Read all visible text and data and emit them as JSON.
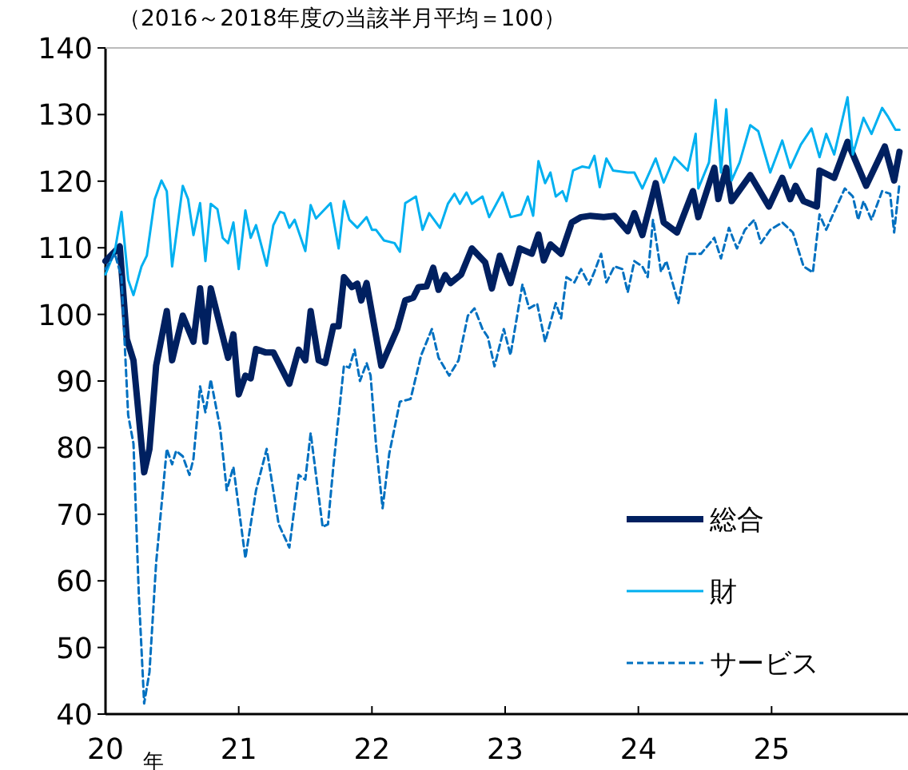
{
  "chart_data": {
    "type": "line",
    "title": "（2016～2018年度の当該半月平均＝100）",
    "xlabel": "年",
    "xlim": [
      2020,
      2026
    ],
    "xticks": [
      {
        "value": 2020,
        "label": "20"
      },
      {
        "value": 2021,
        "label": "21"
      },
      {
        "value": 2022,
        "label": "22"
      },
      {
        "value": 2023,
        "label": "23"
      },
      {
        "value": 2024,
        "label": "24"
      },
      {
        "value": 2025,
        "label": "25"
      }
    ],
    "ylim": [
      40,
      140
    ],
    "yticks": [
      40,
      50,
      60,
      70,
      80,
      90,
      100,
      110,
      120,
      130,
      140
    ],
    "legend": "bottom right",
    "marker": "none",
    "series": [
      {
        "name": "総合",
        "color": "#002060",
        "line_style": "solid",
        "x": [
          2020.0,
          2020.107,
          2020.16,
          2020.21,
          2020.29,
          2020.33,
          2020.38,
          2020.46,
          2020.5,
          2020.58,
          2020.66,
          2020.71,
          2020.75,
          2020.79,
          2020.92,
          2020.96,
          2021.0,
          2021.05,
          2021.09,
          2021.13,
          2021.2,
          2021.26,
          2021.38,
          2021.45,
          2021.5,
          2021.54,
          2021.6,
          2021.65,
          2021.71,
          2021.75,
          2021.79,
          2021.85,
          2021.89,
          2021.92,
          2021.96,
          2022.07,
          2022.19,
          2022.25,
          2022.31,
          2022.35,
          2022.41,
          2022.46,
          2022.5,
          2022.55,
          2022.59,
          2022.67,
          2022.75,
          2022.85,
          2022.9,
          2022.96,
          2023.04,
          2023.11,
          2023.2,
          2023.25,
          2023.29,
          2023.34,
          2023.42,
          2023.5,
          2023.57,
          2023.64,
          2023.74,
          2023.82,
          2023.92,
          2023.97,
          2024.03,
          2024.13,
          2024.19,
          2024.29,
          2024.41,
          2024.45,
          2024.57,
          2024.6,
          2024.66,
          2024.7,
          2024.84,
          2024.98,
          2025.08,
          2025.14,
          2025.18,
          2025.24,
          2025.34,
          2025.36,
          2025.47,
          2025.57,
          2025.71,
          2025.85,
          2025.92,
          2025.96
        ],
        "values": [
          108.0,
          110.2,
          96.3,
          93.1,
          76.3,
          79.8,
          92.3,
          100.5,
          93.1,
          99.8,
          95.9,
          103.9,
          95.9,
          103.9,
          93.5,
          97.0,
          88.0,
          90.8,
          90.4,
          94.8,
          94.3,
          94.3,
          89.6,
          94.7,
          93.1,
          100.5,
          93.1,
          92.7,
          98.2,
          98.2,
          105.6,
          104.1,
          104.6,
          102.1,
          104.7,
          92.3,
          97.8,
          102.1,
          102.5,
          104.1,
          104.2,
          107.0,
          103.7,
          105.9,
          104.7,
          106.0,
          109.9,
          107.8,
          103.9,
          108.8,
          104.7,
          109.9,
          109.1,
          112.0,
          108.1,
          110.5,
          109.1,
          113.8,
          114.6,
          114.8,
          114.6,
          114.8,
          112.5,
          115.2,
          111.9,
          119.7,
          113.8,
          112.3,
          118.5,
          114.6,
          122.0,
          117.3,
          122.0,
          117.0,
          120.9,
          116.2,
          120.5,
          117.3,
          119.3,
          117.0,
          116.2,
          121.6,
          120.5,
          125.9,
          119.3,
          125.2,
          120.1,
          124.4
        ]
      },
      {
        "name": "財",
        "color": "#00b0f0",
        "line_style": "solid",
        "x": [
          2020.0,
          2020.07,
          2020.12,
          2020.17,
          2020.21,
          2020.27,
          2020.31,
          2020.37,
          2020.42,
          2020.46,
          2020.5,
          2020.58,
          2020.62,
          2020.66,
          2020.71,
          2020.75,
          2020.79,
          2020.84,
          2020.88,
          2020.92,
          2020.96,
          2021.0,
          2021.05,
          2021.09,
          2021.13,
          2021.21,
          2021.26,
          2021.31,
          2021.34,
          2021.38,
          2021.42,
          2021.5,
          2021.54,
          2021.58,
          2021.69,
          2021.75,
          2021.79,
          2021.83,
          2021.89,
          2021.96,
          2022.0,
          2022.03,
          2022.09,
          2022.17,
          2022.21,
          2022.25,
          2022.33,
          2022.38,
          2022.43,
          2022.51,
          2022.57,
          2022.62,
          2022.66,
          2022.71,
          2022.75,
          2022.83,
          2022.88,
          2022.98,
          2023.04,
          2023.12,
          2023.17,
          2023.21,
          2023.25,
          2023.3,
          2023.34,
          2023.38,
          2023.43,
          2023.46,
          2023.51,
          2023.58,
          2023.63,
          2023.67,
          2023.71,
          2023.76,
          2023.81,
          2023.92,
          2023.97,
          2024.03,
          2024.13,
          2024.19,
          2024.27,
          2024.37,
          2024.43,
          2024.45,
          2024.53,
          2024.58,
          2024.62,
          2024.66,
          2024.7,
          2024.76,
          2024.84,
          2024.9,
          2024.99,
          2025.08,
          2025.14,
          2025.22,
          2025.3,
          2025.36,
          2025.41,
          2025.47,
          2025.57,
          2025.61,
          2025.69,
          2025.75,
          2025.83,
          2025.87,
          2025.93,
          2025.96
        ],
        "values": [
          106.0,
          109.5,
          115.4,
          105.2,
          102.9,
          107.2,
          108.8,
          117.3,
          120.1,
          118.5,
          107.2,
          119.3,
          117.3,
          111.9,
          116.7,
          108.0,
          116.6,
          115.8,
          111.5,
          110.7,
          113.8,
          106.8,
          115.6,
          111.5,
          113.4,
          107.3,
          113.4,
          115.4,
          115.2,
          113.0,
          114.2,
          109.5,
          116.4,
          114.4,
          116.7,
          109.9,
          117.0,
          114.2,
          113.0,
          114.6,
          112.7,
          112.7,
          111.1,
          110.7,
          109.4,
          116.7,
          117.7,
          112.7,
          115.2,
          113.0,
          116.6,
          118.1,
          116.6,
          118.3,
          116.6,
          117.7,
          114.6,
          118.3,
          114.6,
          115.0,
          117.7,
          114.8,
          123.0,
          119.7,
          121.3,
          117.7,
          118.5,
          117.0,
          121.6,
          122.2,
          122.0,
          123.8,
          119.1,
          123.4,
          121.6,
          121.3,
          121.3,
          118.9,
          123.4,
          119.8,
          123.6,
          121.6,
          127.1,
          118.9,
          122.8,
          132.2,
          121.3,
          130.8,
          120.1,
          122.8,
          128.4,
          127.5,
          121.3,
          126.1,
          122.0,
          125.5,
          127.9,
          123.6,
          127.1,
          124.0,
          132.6,
          124.0,
          129.5,
          127.1,
          131.0,
          129.8,
          127.7,
          127.7
        ]
      },
      {
        "name": "サービス",
        "color": "#0070c0",
        "line_style": "dashed",
        "x": [
          2020.0,
          2020.07,
          2020.12,
          2020.17,
          2020.21,
          2020.25,
          2020.29,
          2020.33,
          2020.38,
          2020.46,
          2020.5,
          2020.53,
          2020.58,
          2020.63,
          2020.66,
          2020.71,
          2020.75,
          2020.79,
          2020.86,
          2020.91,
          2020.96,
          2021.05,
          2021.13,
          2021.21,
          2021.3,
          2021.38,
          2021.45,
          2021.5,
          2021.54,
          2021.63,
          2021.67,
          2021.71,
          2021.79,
          2021.83,
          2021.87,
          2021.91,
          2021.96,
          2021.99,
          2022.03,
          2022.08,
          2022.13,
          2022.21,
          2022.29,
          2022.37,
          2022.45,
          2022.5,
          2022.58,
          2022.65,
          2022.72,
          2022.77,
          2022.83,
          2022.87,
          2022.92,
          2022.99,
          2023.04,
          2023.13,
          2023.18,
          2023.24,
          2023.3,
          2023.38,
          2023.42,
          2023.46,
          2023.52,
          2023.57,
          2023.63,
          2023.67,
          2023.72,
          2023.76,
          2023.82,
          2023.88,
          2023.92,
          2023.97,
          2024.03,
          2024.07,
          2024.11,
          2024.17,
          2024.21,
          2024.3,
          2024.37,
          2024.47,
          2024.57,
          2024.62,
          2024.68,
          2024.74,
          2024.8,
          2024.87,
          2024.92,
          2024.99,
          2025.08,
          2025.16,
          2025.24,
          2025.31,
          2025.36,
          2025.41,
          2025.47,
          2025.55,
          2025.61,
          2025.65,
          2025.69,
          2025.75,
          2025.83,
          2025.89,
          2025.92,
          2025.96
        ],
        "values": [
          106.8,
          109.1,
          105.6,
          84.9,
          80.6,
          58.0,
          41.6,
          46.3,
          62.7,
          79.8,
          77.5,
          79.5,
          78.7,
          75.9,
          78.3,
          89.2,
          85.3,
          90.2,
          83.0,
          73.6,
          77.1,
          63.4,
          73.6,
          79.8,
          68.5,
          65.0,
          75.9,
          75.2,
          82.2,
          68.1,
          68.5,
          77.1,
          92.3,
          92.0,
          94.7,
          90.0,
          92.7,
          90.8,
          80.6,
          70.9,
          79.1,
          86.9,
          87.3,
          93.9,
          97.8,
          93.5,
          90.8,
          93.1,
          99.8,
          100.9,
          97.8,
          96.6,
          92.2,
          97.8,
          93.9,
          104.5,
          100.9,
          101.6,
          95.9,
          101.7,
          99.4,
          105.6,
          104.8,
          106.8,
          104.5,
          106.4,
          109.1,
          104.8,
          107.2,
          106.8,
          103.3,
          108.0,
          107.2,
          105.6,
          114.2,
          106.4,
          108.0,
          101.7,
          109.1,
          109.1,
          111.5,
          108.4,
          113.0,
          109.9,
          112.7,
          114.2,
          110.7,
          112.7,
          113.8,
          112.3,
          107.2,
          106.3,
          115.0,
          112.7,
          115.4,
          118.9,
          117.7,
          114.2,
          117.0,
          114.2,
          118.5,
          118.1,
          112.3,
          119.7
        ]
      }
    ]
  }
}
